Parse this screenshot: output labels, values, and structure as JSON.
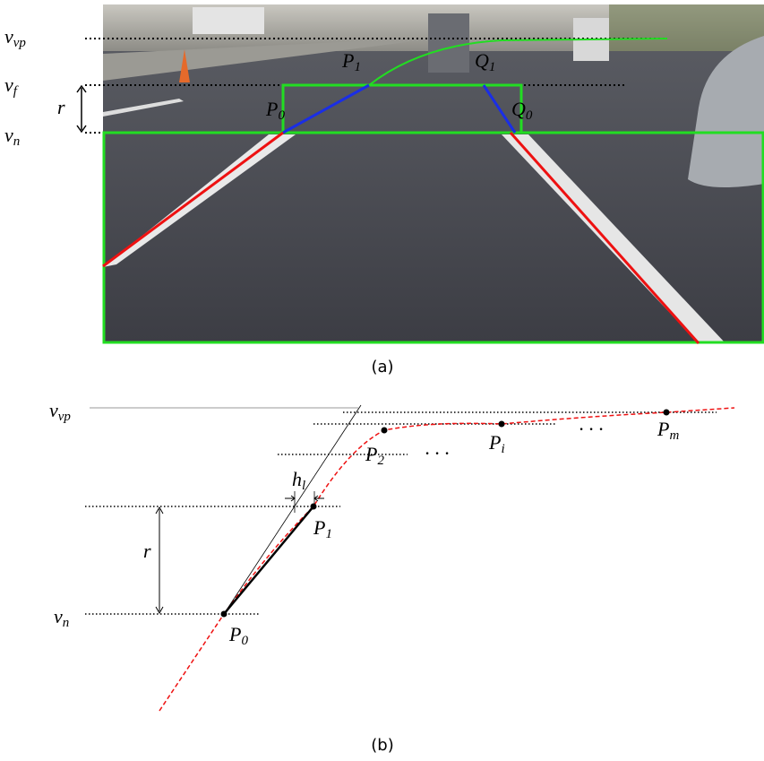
{
  "panel_a": {
    "caption": "(a)",
    "labels": {
      "v_vp": {
        "base": "v",
        "sub": "vp"
      },
      "v_f": {
        "base": "v",
        "sub": "f"
      },
      "r": {
        "base": "r"
      },
      "v_n": {
        "base": "v",
        "sub": "n"
      },
      "P_0": {
        "base": "P",
        "sub": "0"
      },
      "P_1": {
        "base": "P",
        "sub": "1"
      },
      "Q_1": {
        "base": "Q",
        "sub": "1"
      },
      "Q_0": {
        "base": "Q",
        "sub": "0"
      }
    }
  },
  "panel_b": {
    "caption": "(b)",
    "labels": {
      "v_vp": {
        "base": "v",
        "sub": "vp"
      },
      "r": {
        "base": "r"
      },
      "v_n": {
        "base": "v",
        "sub": "n"
      },
      "h_l": {
        "base": "h",
        "sub": "l"
      },
      "P_0": {
        "base": "P",
        "sub": "0"
      },
      "P_1": {
        "base": "P",
        "sub": "1"
      },
      "P_2": {
        "base": "P",
        "sub": "2"
      },
      "P_i": {
        "base": "P",
        "sub": "i"
      },
      "P_m": {
        "base": "P",
        "sub": "m"
      },
      "dots_1": {
        "base": "· · ·"
      },
      "dots_2": {
        "base": "· · ·"
      }
    }
  }
}
